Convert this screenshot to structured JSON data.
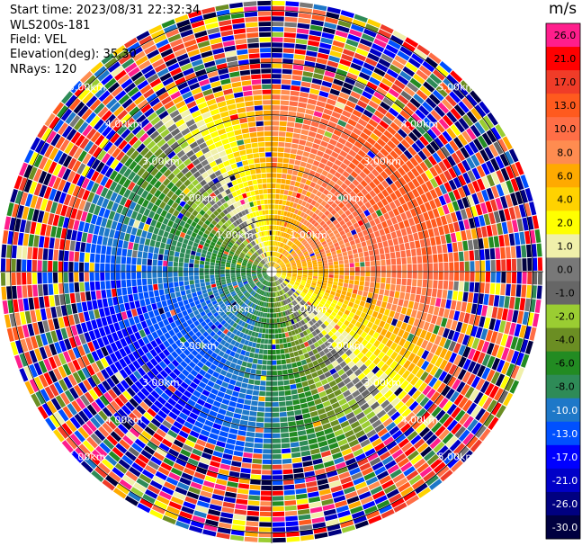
{
  "header": {
    "start_time": "Start time: 2023/08/31 22:32:34",
    "instrument": "WLS200s-181",
    "field": "Field: VEL",
    "elevation": "Elevation(deg): 35.30",
    "nrays": "NRays: 120"
  },
  "chart_data": {
    "type": "heatmap",
    "projection": "polar-ppi",
    "nrays": 120,
    "max_range_km": 5.2,
    "range_rings_km": [
      1.0,
      2.0,
      3.0,
      4.0,
      5.0
    ],
    "ring_labels": [
      "1.00km",
      "2.00km",
      "3.00km",
      "4.00km",
      "5.00km"
    ],
    "colorbar": {
      "unit": "m/s",
      "tick_labels": [
        "26.0",
        "21.0",
        "17.0",
        "13.0",
        "10.0",
        "8.0",
        "6.0",
        "4.0",
        "2.0",
        "1.0",
        "0.0",
        "-1.0",
        "-2.0",
        "-4.0",
        "-6.0",
        "-8.0",
        "-10.0",
        "-13.0",
        "-17.0",
        "-21.0",
        "-26.0",
        "-30.0"
      ],
      "colors": [
        "#ff1e8c",
        "#ff0000",
        "#f03c28",
        "#ff5a1e",
        "#ff6e46",
        "#ff8c50",
        "#ffaa00",
        "#ffd200",
        "#ffff00",
        "#f0f0aa",
        "#787878",
        "#666666",
        "#9acd32",
        "#6b8e23",
        "#228b22",
        "#2e8b57",
        "#1e78c8",
        "#0050ff",
        "#0000ff",
        "#0000c8",
        "#000080",
        "#000040"
      ]
    },
    "velocity_pattern": "dipole: positive (receding) toward north-east, negative (approaching) toward south-west; noisy beyond ~3.5 km"
  },
  "colors": {
    "grid": "#000000",
    "ring_label": "#ffffff"
  }
}
